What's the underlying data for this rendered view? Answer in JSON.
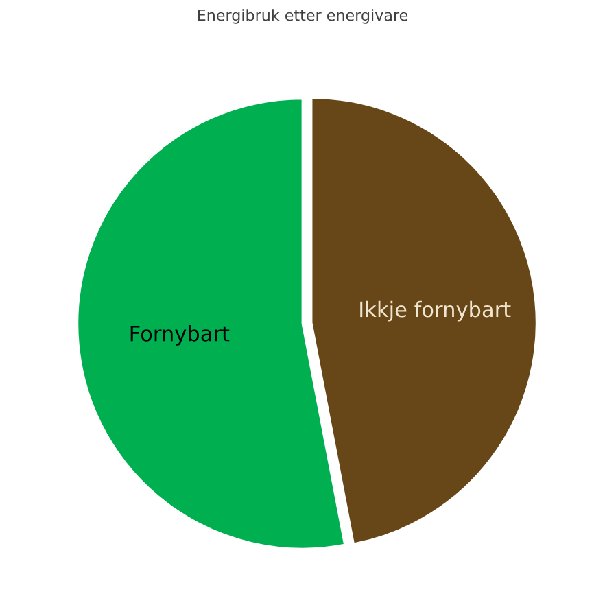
{
  "chart_data": {
    "type": "pie",
    "title": "Energibruk etter energivare",
    "categories": [
      "Fornybart",
      "Ikkje fornybart"
    ],
    "values": [
      53,
      47
    ],
    "colors": [
      "#00b050",
      "#674717"
    ],
    "legend": false
  }
}
